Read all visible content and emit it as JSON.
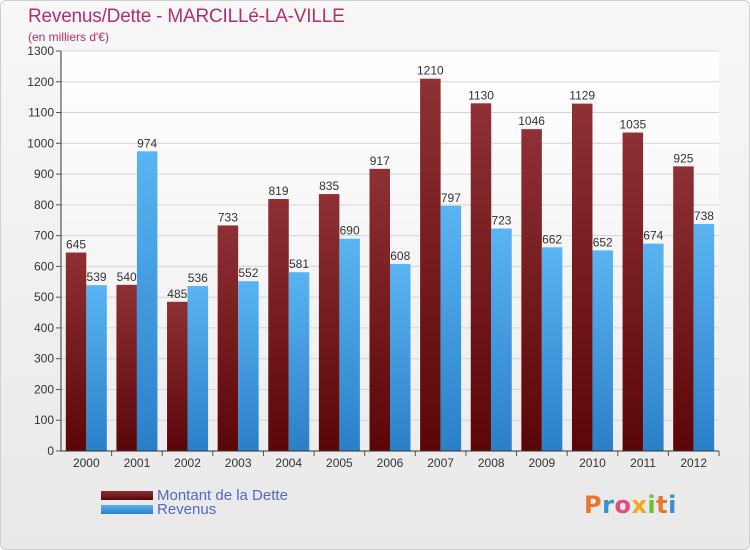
{
  "title": "Revenus/Dette - MARCILLé-LA-VILLE",
  "subtitle": "(en milliers d'€)",
  "brand": {
    "letters": [
      "P",
      "r",
      "o",
      "x",
      "i",
      "t",
      "i"
    ],
    "colors": [
      "#e8772e",
      "#3a8fd0",
      "#e84a7a",
      "#f2a81d",
      "#6cbf3b",
      "#e8772e",
      "#3a8fd0"
    ]
  },
  "chart_data": {
    "type": "bar",
    "categories": [
      "2000",
      "2001",
      "2002",
      "2003",
      "2004",
      "2005",
      "2006",
      "2007",
      "2008",
      "2009",
      "2010",
      "2011",
      "2012"
    ],
    "series": [
      {
        "name": "Montant de la Dette",
        "color": "#7b1f22",
        "values": [
          645,
          540,
          485,
          733,
          819,
          835,
          917,
          1210,
          1130,
          1046,
          1129,
          1035,
          925
        ]
      },
      {
        "name": "Revenus",
        "color": "#4aa3e6",
        "values": [
          539,
          974,
          536,
          552,
          581,
          690,
          608,
          797,
          723,
          662,
          652,
          674,
          738
        ]
      }
    ],
    "ylim": [
      0,
      1300
    ],
    "yticks": [
      0,
      100,
      200,
      300,
      400,
      500,
      600,
      700,
      800,
      900,
      1000,
      1100,
      1200,
      1300
    ],
    "grid": true,
    "legend": "bottom-left"
  }
}
